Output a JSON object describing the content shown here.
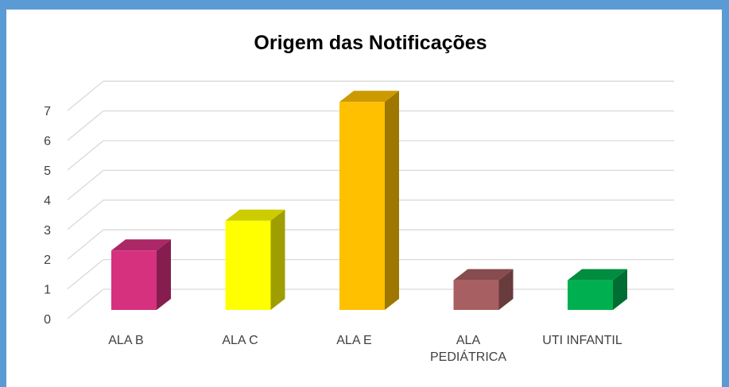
{
  "chart_data": {
    "type": "bar3d",
    "title": "Origem das Notificações",
    "categories": [
      "ALA B",
      "ALA C",
      "ALA E",
      "ALA PEDIÁTRICA",
      "UTI INFANTIL"
    ],
    "values": [
      2,
      3,
      7,
      1,
      1
    ],
    "colors": [
      "#d6317f",
      "#ffff00",
      "#ffc000",
      "#a85f62",
      "#00b050"
    ],
    "ylim": [
      0,
      7
    ],
    "yticks": [
      0,
      1,
      2,
      3,
      4,
      5,
      6,
      7
    ],
    "grid": true
  }
}
